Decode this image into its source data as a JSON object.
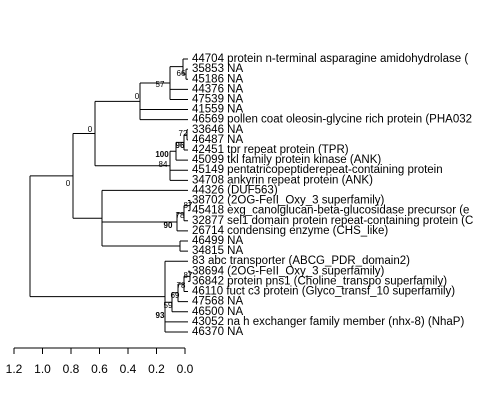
{
  "leaves": [
    "44704 protein n-terminal asparagine amidohydrolase (",
    "35853 NA",
    "45186 NA",
    "44376 NA",
    "47539 NA",
    "41559 NA",
    "46569 pollen coat oleosin-glycine rich protein (PHA032",
    "33646 NA",
    "46487 NA",
    "42451 tpr repeat protein (TPR)",
    "45099 tkl family protein kinase (ANK)",
    "45149 pentatricopeptiderepeat-containing protein",
    "34708 ankyrin repeat protein (ANK)",
    "44326 (DUF563)",
    "38702 (2OG-FeII_Oxy_3 superfamily)",
    "45418 exg_canolglucan-beta-glucosidase precursor (e",
    "32877 sel1 domain protein repeat-containing protein (C",
    "26714 condensing enzyme (CHS_like)",
    "46499 NA",
    "34815 NA",
    "83 abc transporter (ABCG_PDR_domain2)",
    "38694 (2OG-FeII_Oxy_3 superfamily)",
    "36842 protein pns1 (Choline_transpo superfamily)",
    "46110 fuct c3 protein (Glyco_transf_10 superfamily)",
    "47568 NA",
    "46500 NA",
    "43052 na h exchanger family member (nhx-8) (NhaP)",
    "46370 NA"
  ],
  "support": [
    66,
    57,
    0,
    0,
    72,
    96,
    100,
    84,
    0,
    87,
    78,
    90,
    87,
    78,
    69,
    59,
    93
  ],
  "axis": {
    "ticks": [
      1.2,
      {
        "value": 1,
        "label": "1.0"
      },
      0.8,
      0.6,
      0.4,
      0.2,
      {
        "value": 0,
        "label": "0.0"
      }
    ],
    "lim": [
      1.2,
      0
    ]
  }
}
